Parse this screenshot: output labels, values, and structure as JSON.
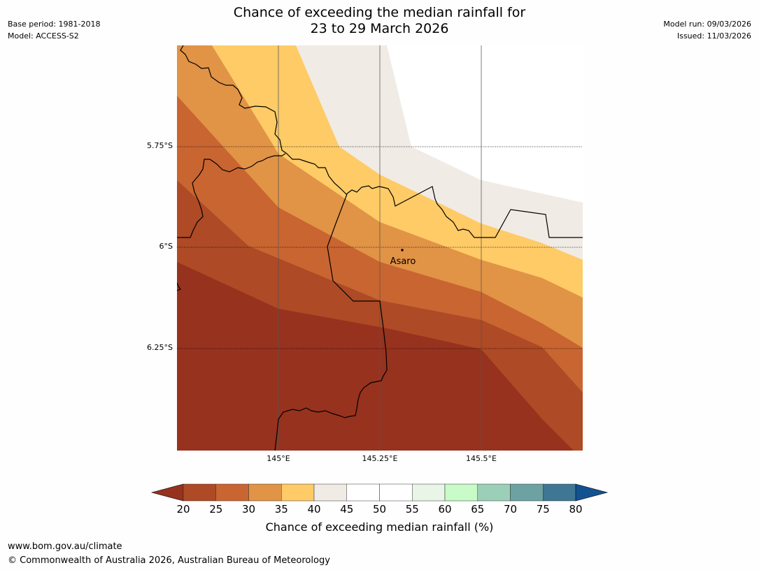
{
  "header": {
    "title_line1": "Chance of exceeding the median rainfall for",
    "title_line2": "23 to 29 March 2026",
    "base_period": "Base period: 1981-2018",
    "model": "Model: ACCESS-S2",
    "model_run": "Model run: 09/03/2026",
    "issued": "Issued: 11/03/2026"
  },
  "map": {
    "lat_labels": [
      "5.75°S",
      "6°S",
      "6.25°S"
    ],
    "lon_labels": [
      "145°E",
      "145.25°E",
      "145.5°E"
    ],
    "place": {
      "name": "Asaro",
      "lon": 145.28,
      "lat": -6.01
    },
    "colors": {
      "c20": "#97321e",
      "c25": "#ae4a25",
      "c30": "#c96531",
      "c35": "#e19346",
      "c40": "#fecb66",
      "c45": "#f0ebe5",
      "border": "#000000",
      "gridline": "#555555"
    }
  },
  "colorbar": {
    "ticks": [
      "20",
      "25",
      "30",
      "35",
      "40",
      "45",
      "50",
      "55",
      "60",
      "65",
      "70",
      "75",
      "80"
    ],
    "colors": [
      "#ae4a25",
      "#c96531",
      "#e19346",
      "#fecb66",
      "#f0ebe5",
      "#ffffff",
      "#ffffff",
      "#e9f5e6",
      "#c8fbc7",
      "#9ccfb8",
      "#6ca2a2",
      "#3f7694"
    ],
    "under_color": "#97321e",
    "over_color": "#135290",
    "label": "Chance of exceeding median rainfall (%)"
  },
  "footer": {
    "url": "www.bom.gov.au/climate",
    "copyright": "© Commonwealth of Australia 2026, Australian Bureau of Meteorology"
  }
}
